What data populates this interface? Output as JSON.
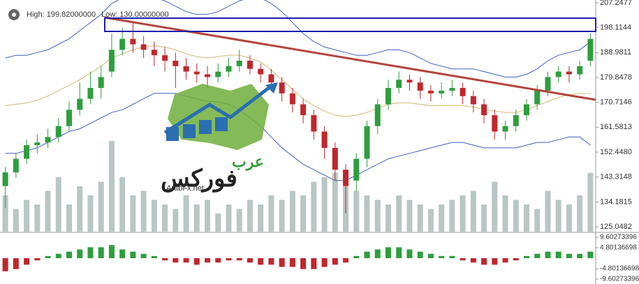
{
  "chart_data": {
    "type": "candlestick",
    "header": [
      "High: 199.82000000",
      "Low: 130.00000000"
    ],
    "annotations": [
      "عرب",
      "فوركس",
      "ArabFx.net"
    ],
    "open": [
      140,
      145,
      150,
      155,
      156,
      158,
      162,
      168,
      172,
      176,
      182,
      190,
      194,
      192,
      190,
      188,
      186,
      184,
      182,
      181,
      180,
      182,
      184,
      186,
      183,
      181,
      178,
      174,
      170,
      166,
      160,
      154,
      146,
      142,
      150,
      162,
      170,
      176,
      179,
      178,
      175,
      174,
      175,
      176,
      173,
      170,
      166,
      160,
      162,
      166,
      170,
      175,
      180,
      182,
      181,
      186
    ],
    "high": [
      147,
      152,
      157,
      159,
      161,
      165,
      171,
      178,
      182,
      184,
      196,
      198,
      199.82,
      195,
      193,
      191,
      189,
      187,
      185,
      184,
      185,
      187,
      190,
      188,
      185,
      183,
      180,
      176,
      172,
      168,
      162,
      156,
      148,
      152,
      164,
      172,
      179,
      182,
      181,
      180,
      177,
      178,
      179,
      178,
      175,
      172,
      168,
      164,
      168,
      172,
      177,
      182,
      184,
      184,
      186,
      196
    ],
    "low": [
      132,
      143,
      148,
      152,
      154,
      156,
      160,
      166,
      170,
      172,
      180,
      188,
      189,
      187,
      184,
      182,
      176,
      179,
      178,
      176,
      178,
      180,
      182,
      181,
      178,
      175,
      171,
      167,
      163,
      157,
      150,
      142,
      130,
      138,
      147,
      159,
      168,
      174,
      175,
      172,
      171,
      172,
      173,
      170,
      167,
      163,
      157,
      157,
      160,
      164,
      168,
      173,
      178,
      178,
      179,
      184
    ],
    "close": [
      145,
      150,
      155,
      156,
      158,
      162,
      168,
      172,
      176,
      180,
      190,
      194,
      192,
      190,
      188,
      186,
      184,
      182,
      181,
      180,
      182,
      184,
      186,
      183,
      181,
      178,
      174,
      170,
      166,
      160,
      154,
      146,
      140,
      150,
      162,
      170,
      176,
      179,
      178,
      175,
      174,
      175,
      176,
      173,
      170,
      166,
      160,
      162,
      166,
      170,
      175,
      180,
      182,
      181,
      184,
      194
    ],
    "up_color": "#2e9e3e",
    "down_color": "#c0272d",
    "upper_band": [
      187,
      188,
      188,
      189,
      190,
      192,
      194,
      197,
      200,
      203,
      207,
      209,
      210,
      210,
      209,
      208,
      206,
      204,
      203,
      203,
      204,
      206,
      208,
      209,
      209,
      207,
      204,
      200,
      196,
      193,
      191,
      190,
      189,
      188,
      188,
      189,
      190,
      190,
      189,
      187,
      185,
      184,
      183,
      183,
      183,
      182,
      181,
      180,
      180,
      181,
      183,
      186,
      188,
      189,
      190,
      193
    ],
    "lower_band": [
      152,
      152,
      153,
      154,
      156,
      158,
      160,
      161,
      163,
      165,
      167,
      168,
      170,
      172,
      174,
      174,
      174,
      173,
      172,
      171,
      171,
      170,
      168,
      165,
      162,
      158,
      154,
      151,
      148,
      146,
      144,
      142,
      142,
      144,
      146,
      148,
      150,
      151,
      152,
      153,
      154,
      155,
      156,
      156,
      155,
      154,
      154,
      154,
      154,
      155,
      156,
      156,
      157,
      158,
      158,
      155
    ],
    "middle_band": [
      169.5,
      170,
      170.5,
      171.5,
      173,
      175,
      177,
      179,
      181.5,
      184,
      187,
      188.5,
      190,
      191,
      191.5,
      191,
      190,
      188.5,
      187.5,
      187,
      187.5,
      188,
      188,
      187,
      185.5,
      182.5,
      179,
      175.5,
      172,
      169.5,
      167.5,
      166,
      165.5,
      166,
      167,
      168.5,
      170,
      170.5,
      170.5,
      170,
      169.5,
      169.5,
      169.5,
      169.5,
      169,
      168,
      167.5,
      167,
      167,
      168,
      169.5,
      171,
      172.5,
      173.5,
      174,
      174
    ],
    "band_color": "#3f5fbf",
    "middle_color": "#d8c48a",
    "ylim": [
      123.26,
      208.27
    ],
    "yticks": [
      207.2477,
      198.1144,
      188.9811,
      179.8478,
      170.7146,
      161.5813,
      {
        "value": 152.448,
        "label": "152.4480"
      },
      143.3148,
      134.1815,
      125.0482
    ],
    "volume": [
      40,
      25,
      35,
      30,
      45,
      60,
      30,
      50,
      40,
      55,
      100,
      60,
      40,
      45,
      35,
      30,
      25,
      40,
      30,
      35,
      20,
      30,
      25,
      35,
      30,
      40,
      35,
      45,
      40,
      55,
      60,
      65,
      50,
      45,
      40,
      35,
      30,
      40,
      35,
      30,
      25,
      30,
      35,
      40,
      45,
      30,
      55,
      40,
      35,
      30,
      25,
      45,
      35,
      30,
      40,
      65
    ],
    "volume_color": "#b9c6c6",
    "macd": {
      "values": [
        -6,
        -5,
        -3,
        -1,
        1,
        2,
        3,
        4,
        5,
        5,
        6,
        4,
        3,
        2,
        1,
        -1,
        -2,
        -2,
        -3,
        -2,
        -2,
        -1,
        -1,
        -2,
        -3,
        -3,
        -4,
        -4,
        -5,
        -5,
        -4,
        -3,
        -2,
        1,
        3,
        4,
        5,
        5,
        4,
        3,
        2,
        1,
        1,
        -1,
        -2,
        -3,
        -3,
        -2,
        -1,
        1,
        2,
        3,
        3,
        2,
        2,
        3
      ],
      "ylim": [
        -11.84,
        11.2
      ],
      "yticks": [
        9.60273396,
        4.80136698,
        -4.80136698,
        -9.60273396
      ]
    }
  }
}
